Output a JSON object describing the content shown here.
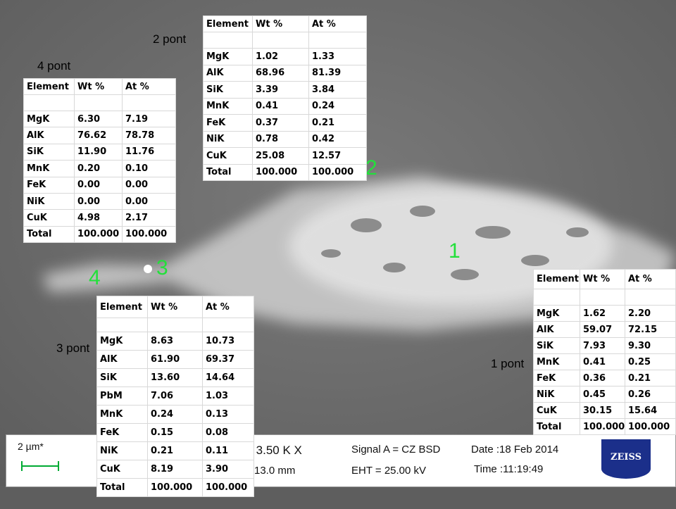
{
  "labels": [
    "1 pont",
    "2 pont",
    "3 pont",
    "4 pont"
  ],
  "markers": [
    "1",
    "2",
    "3",
    "4"
  ],
  "tables": [
    {
      "header": [
        "Element",
        "Wt %",
        "At %"
      ],
      "rows": [
        [
          "MgK",
          "1.62",
          "2.20"
        ],
        [
          "AlK",
          "59.07",
          "72.15"
        ],
        [
          "SiK",
          "7.93",
          "9.30"
        ],
        [
          "MnK",
          "0.41",
          "0.25"
        ],
        [
          "FeK",
          "0.36",
          "0.21"
        ],
        [
          "NiK",
          "0.45",
          "0.26"
        ],
        [
          "CuK",
          "30.15",
          "15.64"
        ],
        [
          "Total",
          "100.000",
          "100.000"
        ]
      ]
    },
    {
      "header": [
        "Element",
        "Wt %",
        "At %"
      ],
      "rows": [
        [
          "MgK",
          "1.02",
          "1.33"
        ],
        [
          "AlK",
          "68.96",
          "81.39"
        ],
        [
          "SiK",
          "3.39",
          "3.84"
        ],
        [
          "MnK",
          "0.41",
          "0.24"
        ],
        [
          "FeK",
          "0.37",
          "0.21"
        ],
        [
          "NiK",
          "0.78",
          "0.42"
        ],
        [
          "CuK",
          "25.08",
          "12.57"
        ],
        [
          "Total",
          "100.000",
          "100.000"
        ]
      ]
    },
    {
      "header": [
        "Element",
        "Wt %",
        "At %"
      ],
      "rows": [
        [
          "MgK",
          "8.63",
          "10.73"
        ],
        [
          "AlK",
          "61.90",
          "69.37"
        ],
        [
          "SiK",
          "13.60",
          "14.64"
        ],
        [
          "PbM",
          "7.06",
          "1.03"
        ],
        [
          "MnK",
          "0.24",
          "0.13"
        ],
        [
          "FeK",
          "0.15",
          "0.08"
        ],
        [
          "NiK",
          "0.21",
          "0.11"
        ],
        [
          "CuK",
          "8.19",
          "3.90"
        ],
        [
          "Total",
          "100.000",
          "100.000"
        ]
      ]
    },
    {
      "header": [
        "Element",
        "Wt %",
        "At %"
      ],
      "rows": [
        [
          "MgK",
          "6.30",
          "7.19"
        ],
        [
          "AlK",
          "76.62",
          "78.78"
        ],
        [
          "SiK",
          "11.90",
          "11.76"
        ],
        [
          "MnK",
          "0.20",
          "0.10"
        ],
        [
          "FeK",
          "0.00",
          "0.00"
        ],
        [
          "NiK",
          "0.00",
          "0.00"
        ],
        [
          "CuK",
          "4.98",
          "2.17"
        ],
        [
          "Total",
          "100.000",
          "100.000"
        ]
      ]
    }
  ],
  "info_bar": {
    "scale": "2 µm*",
    "mag": "= 3.50 K X",
    "wd": "13.0 mm",
    "signal": "Signal A = CZ BSD",
    "eht": "EHT = 25.00 kV",
    "date": "Date :18 Feb 2014",
    "time": "Time :11:19:49",
    "logo": "ZEISS"
  }
}
